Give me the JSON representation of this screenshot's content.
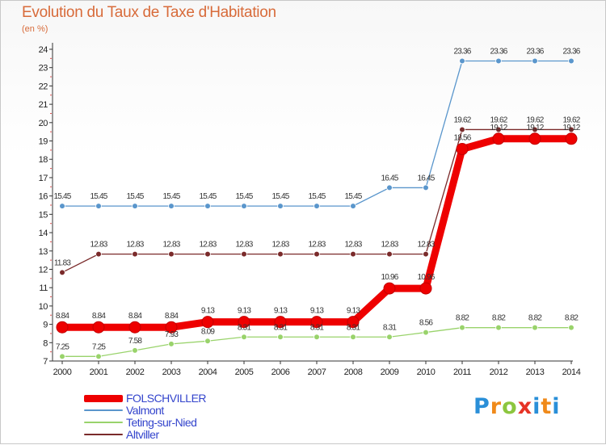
{
  "title": "Evolution du Taux de Taxe d'Habitation",
  "unit": "(en %)",
  "logo_text": "Proxiti",
  "chart_data": {
    "type": "line",
    "title": "Evolution du Taux de Taxe d'Habitation",
    "ylabel": "(en %)",
    "xlabel": "",
    "ylim": [
      7,
      24
    ],
    "grid": false,
    "legend_position": "bottom-left",
    "x": [
      "2000",
      "2001",
      "2002",
      "2003",
      "2004",
      "2005",
      "2006",
      "2007",
      "2008",
      "2009",
      "2010",
      "2011",
      "2012",
      "2013",
      "2014"
    ],
    "yticks": [
      "7",
      "8",
      "9",
      "10",
      "11",
      "12",
      "13",
      "14",
      "15",
      "16",
      "17",
      "18",
      "19",
      "20",
      "21",
      "22",
      "23",
      "24"
    ],
    "series": [
      {
        "name": "Valmont",
        "color": "#5a96cc",
        "values": [
          15.45,
          15.45,
          15.45,
          15.45,
          15.45,
          15.45,
          15.45,
          15.45,
          15.45,
          16.45,
          16.45,
          23.36,
          23.36,
          23.36,
          23.36
        ],
        "labels": [
          "15.45",
          "15.45",
          "15.45",
          "15.45",
          "15.45",
          "15.45",
          "15.45",
          "15.45",
          "15.45",
          "16.45",
          "16.45",
          "23.36",
          "23.36",
          "23.36",
          "23.36"
        ]
      },
      {
        "name": "Altviller",
        "color": "#7a2a2a",
        "values": [
          11.83,
          12.83,
          12.83,
          12.83,
          12.83,
          12.83,
          12.83,
          12.83,
          12.83,
          12.83,
          12.83,
          19.62,
          19.62,
          19.62,
          19.62
        ],
        "labels": [
          "11.83",
          "12.83",
          "12.83",
          "12.83",
          "12.83",
          "12.83",
          "12.83",
          "12.83",
          "12.83",
          "12.83",
          "12.83",
          "19.62",
          "19.62",
          "19.62",
          "19.62"
        ]
      },
      {
        "name": "Teting-sur-Nied",
        "color": "#99d36b",
        "values": [
          7.25,
          7.25,
          7.58,
          7.93,
          8.09,
          8.31,
          8.31,
          8.31,
          8.31,
          8.31,
          8.56,
          8.82,
          8.82,
          8.82,
          8.82
        ],
        "labels": [
          "7.25",
          "7.25",
          "7.58",
          "7.93",
          "8.09",
          "8.31",
          "8.31",
          "8.31",
          "8.31",
          "8.31",
          "8.56",
          "8.82",
          "8.82",
          "8.82",
          "8.82"
        ]
      },
      {
        "name": "FOLSCHVILLER",
        "color": "#ee0000",
        "values": [
          8.84,
          8.84,
          8.84,
          8.84,
          9.13,
          9.13,
          9.13,
          9.13,
          9.13,
          10.96,
          10.96,
          18.56,
          19.12,
          19.12,
          19.12
        ],
        "labels": [
          "8.84",
          "8.84",
          "8.84",
          "8.84",
          "9.13",
          "9.13",
          "9.13",
          "9.13",
          "9.13",
          "10.96",
          "10.96",
          "18.56",
          "19.12",
          "19.12",
          "19.12"
        ]
      }
    ],
    "legend_order": [
      "FOLSCHVILLER",
      "Valmont",
      "Teting-sur-Nied",
      "Altviller"
    ]
  }
}
